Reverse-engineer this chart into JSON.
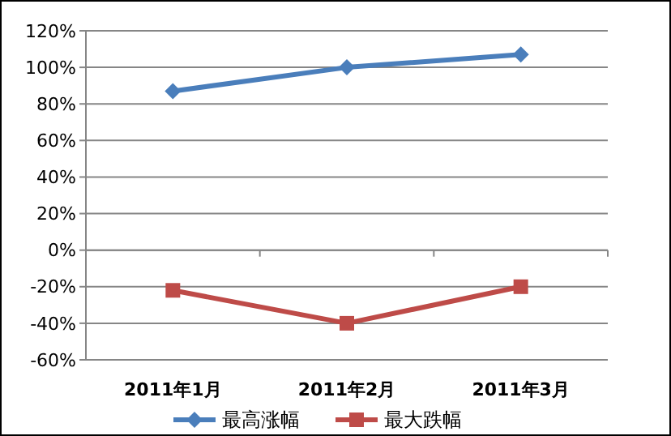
{
  "chart_data": {
    "type": "line",
    "categories": [
      "2011年1月",
      "2011年2月",
      "2011年3月"
    ],
    "series": [
      {
        "name": "最高涨幅",
        "color": "#4a7ebb",
        "marker": "diamond",
        "values": [
          87,
          100,
          107
        ]
      },
      {
        "name": "最大跌幅",
        "color": "#be4b48",
        "marker": "square",
        "values": [
          -22,
          -40,
          -20
        ]
      }
    ],
    "ylim": [
      -60,
      120
    ],
    "yticks": [
      {
        "value": -60,
        "label": "-60%"
      },
      {
        "value": -40,
        "label": "-40%"
      },
      {
        "value": -20,
        "label": "-20%"
      },
      {
        "value": 0,
        "label": "0%"
      },
      {
        "value": 20,
        "label": "20%"
      },
      {
        "value": 40,
        "label": "40%"
      },
      {
        "value": 60,
        "label": "60%"
      },
      {
        "value": 80,
        "label": "80%"
      },
      {
        "value": 100,
        "label": "100%"
      },
      {
        "value": 120,
        "label": "120%"
      }
    ],
    "grid": "y",
    "legend": "bottom"
  }
}
